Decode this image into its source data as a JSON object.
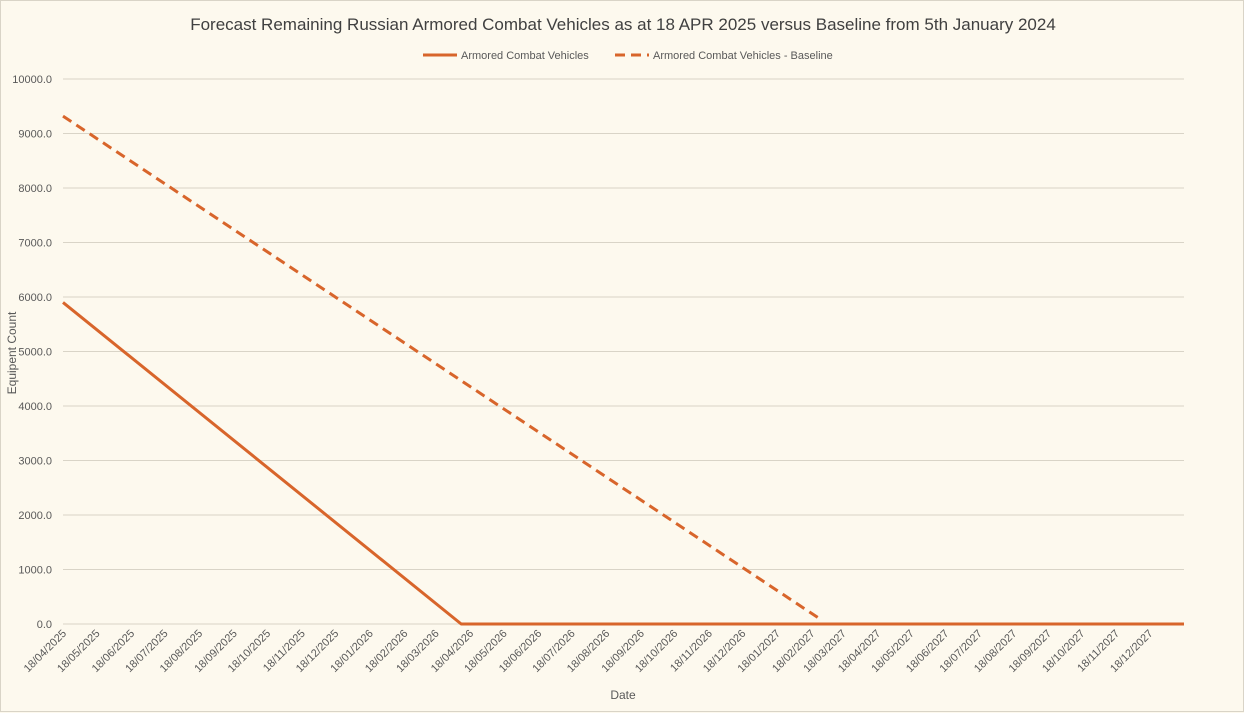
{
  "chart_data": {
    "type": "line",
    "title": "Forecast Remaining Russian Armored Combat Vehicles as at 18 APR 2025 versus Baseline from 5th January 2024",
    "xlabel": "Date",
    "ylabel": "Equipent Count",
    "ylim": [
      0,
      10000
    ],
    "yticks": [
      "0.0",
      "1000.0",
      "2000.0",
      "3000.0",
      "4000.0",
      "5000.0",
      "6000.0",
      "7000.0",
      "8000.0",
      "9000.0",
      "10000.0"
    ],
    "x_tick_labels": [
      "18/04/2025",
      "18/05/2025",
      "18/06/2025",
      "18/07/2025",
      "18/08/2025",
      "18/09/2025",
      "18/10/2025",
      "18/11/2025",
      "18/12/2025",
      "18/01/2026",
      "18/02/2026",
      "18/03/2026",
      "18/04/2026",
      "18/05/2026",
      "18/06/2026",
      "18/07/2026",
      "18/08/2026",
      "18/09/2026",
      "18/10/2026",
      "18/11/2026",
      "18/12/2026",
      "18/01/2027",
      "18/02/2027",
      "18/03/2027",
      "18/04/2027",
      "18/05/2027",
      "18/06/2027",
      "18/07/2027",
      "18/08/2027",
      "18/09/2027",
      "18/10/2027",
      "18/11/2027",
      "18/12/2027"
    ],
    "x_range": [
      "18/04/2025",
      "18/01/2028"
    ],
    "grid": true,
    "legend_position": "top-center",
    "series": [
      {
        "name": "Armored Combat Vehicles",
        "style": "solid",
        "color": "#d8652b",
        "points": [
          {
            "x": "18/04/2025",
            "y": 5900
          },
          {
            "x": "10/04/2026",
            "y": 0
          },
          {
            "x": "18/01/2028",
            "y": 0
          }
        ]
      },
      {
        "name": "Armored Combat Vehicles - Baseline",
        "style": "dashed",
        "color": "#d8652b",
        "points": [
          {
            "x": "18/04/2025",
            "y": 9320
          },
          {
            "x": "28/02/2027",
            "y": 60
          }
        ]
      }
    ]
  }
}
